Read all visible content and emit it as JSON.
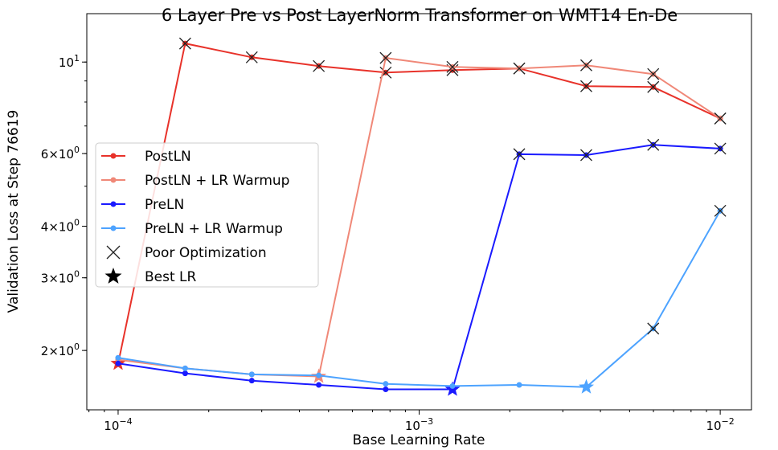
{
  "chart_data": {
    "type": "line",
    "title": "6 Layer Pre vs Post LayerNorm Transformer on WMT14 En-De",
    "xlabel": "Base Learning Rate",
    "ylabel": "Validation Loss at Step 76619",
    "xscale": "log",
    "yscale": "log",
    "xlim": [
      7.87e-05,
      0.0127
    ],
    "ylim": [
      1.436,
      13.1
    ],
    "grid": false,
    "legend_position": "center-left",
    "x_ticks": [
      {
        "value": 0.0001,
        "label": "10^-4"
      },
      {
        "value": 0.001,
        "label": "10^-3"
      },
      {
        "value": 0.01,
        "label": "10^-2"
      }
    ],
    "y_ticks": [
      {
        "value": 10,
        "label": "10^1"
      },
      {
        "value": 6,
        "label": "6×10^0"
      },
      {
        "value": 4,
        "label": "4×10^0"
      },
      {
        "value": 3,
        "label": "3×10^0"
      },
      {
        "value": 2,
        "label": "2×10^0"
      }
    ],
    "x": [
      0.0001,
      0.000167,
      0.000278,
      0.000464,
      0.000774,
      0.00129,
      0.00215,
      0.00359,
      0.00599,
      0.01
    ],
    "series": [
      {
        "name": "PostLN",
        "color": "#e8322a",
        "values": [
          1.86,
          11.09,
          10.27,
          9.78,
          9.43,
          9.56,
          9.65,
          8.74,
          8.7,
          7.3
        ],
        "poor_optimization": [
          false,
          true,
          true,
          true,
          true,
          true,
          true,
          true,
          true,
          true
        ],
        "best_index": 0
      },
      {
        "name": "PostLN + LR Warmup",
        "color": "#f08878",
        "values": [
          1.9,
          1.81,
          1.75,
          1.73,
          10.23,
          9.73,
          9.65,
          9.82,
          9.35,
          7.3
        ],
        "poor_optimization": [
          false,
          false,
          false,
          false,
          true,
          true,
          true,
          true,
          true,
          true
        ],
        "best_index": 3
      },
      {
        "name": "PreLN",
        "color": "#1a1aff",
        "values": [
          1.86,
          1.76,
          1.69,
          1.65,
          1.61,
          1.61,
          5.98,
          5.95,
          6.3,
          6.17
        ],
        "poor_optimization": [
          false,
          false,
          false,
          false,
          false,
          false,
          true,
          true,
          true,
          true
        ],
        "best_index": 5
      },
      {
        "name": "PreLN + LR Warmup",
        "color": "#4da3ff",
        "values": [
          1.92,
          1.81,
          1.75,
          1.74,
          1.66,
          1.64,
          1.65,
          1.63,
          2.26,
          4.36
        ],
        "poor_optimization": [
          false,
          false,
          false,
          false,
          false,
          false,
          false,
          false,
          true,
          true
        ],
        "best_index": 7
      }
    ],
    "legend_extra": [
      {
        "name": "Poor Optimization",
        "marker": "x"
      },
      {
        "name": "Best LR",
        "marker": "star"
      }
    ]
  }
}
